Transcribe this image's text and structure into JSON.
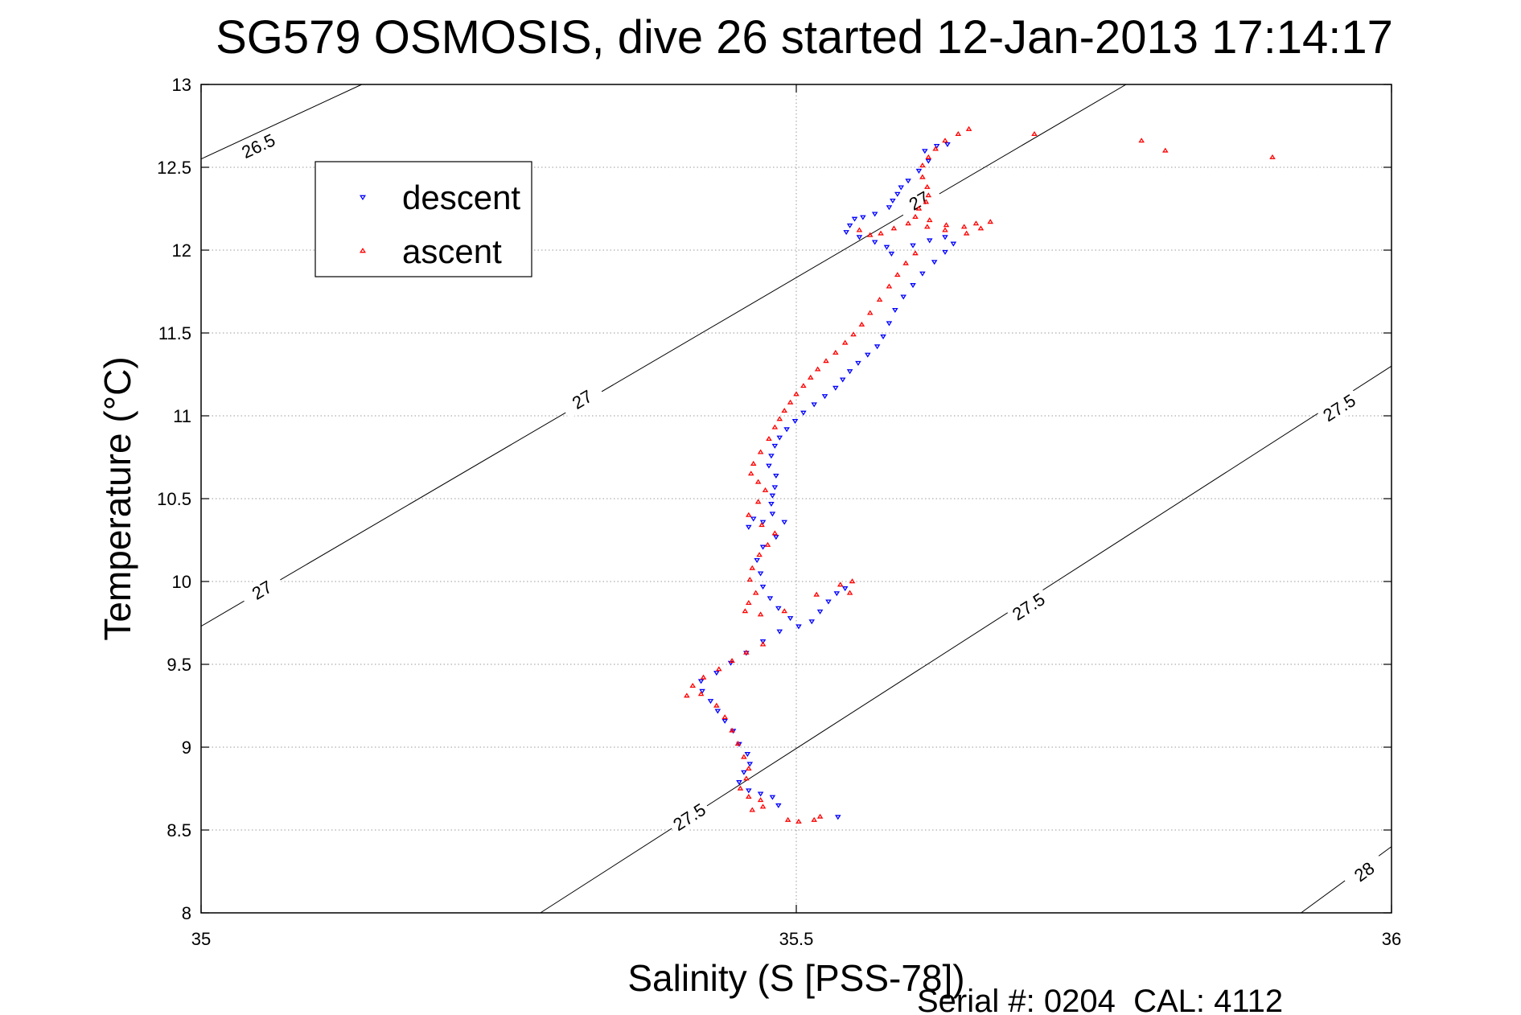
{
  "chart_data": {
    "type": "scatter",
    "title": "SG579 OSMOSIS, dive 26 started 12-Jan-2013 17:14:17",
    "xlabel": "Salinity (S [PSS-78])",
    "ylabel": "Temperature (°C)",
    "footer": "Serial #: 0204  CAL: 4112",
    "xlim": [
      35,
      36
    ],
    "ylim": [
      8,
      13
    ],
    "xticks": [
      35,
      35.5,
      36
    ],
    "xtick_labels": [
      "35",
      "35.5",
      "36"
    ],
    "yticks": [
      8,
      8.5,
      9,
      9.5,
      10,
      10.5,
      11,
      11.5,
      12,
      12.5,
      13
    ],
    "ytick_labels": [
      "8",
      "8.5",
      "9",
      "9.5",
      "10",
      "10.5",
      "11",
      "11.5",
      "12",
      "12.5",
      "13"
    ],
    "grid": true,
    "legend_position": "top-left",
    "colors": {
      "descent": "#0000ff",
      "ascent": "#ff0000",
      "axis": "#000000",
      "grid": "#9a9a9a"
    },
    "contours": [
      {
        "label": "26.5",
        "points": [
          [
            35.0,
            12.55
          ],
          [
            35.135,
            13.0
          ]
        ],
        "label_positions": [
          [
            35.048,
            12.63
          ]
        ]
      },
      {
        "label": "27",
        "points": [
          [
            35.0,
            9.73
          ],
          [
            35.777,
            13.0
          ]
        ],
        "label_positions": [
          [
            35.051,
            9.95
          ],
          [
            35.32,
            11.1
          ],
          [
            35.603,
            12.3
          ]
        ]
      },
      {
        "label": "27.5",
        "points": [
          [
            35.285,
            8.0
          ],
          [
            36.0,
            11.3
          ]
        ],
        "label_positions": [
          [
            35.41,
            8.58
          ],
          [
            35.695,
            9.85
          ],
          [
            35.956,
            11.05
          ]
        ]
      },
      {
        "label": "28",
        "points": [
          [
            35.924,
            8.0
          ],
          [
            36.0,
            8.4
          ]
        ],
        "label_positions": [
          [
            35.977,
            8.25
          ]
        ]
      }
    ],
    "series": [
      {
        "name": "descent",
        "marker": "triangle-down",
        "points": [
          [
            35.627,
            12.64
          ],
          [
            35.618,
            12.63
          ],
          [
            35.608,
            12.6
          ],
          [
            35.611,
            12.54
          ],
          [
            35.603,
            12.48
          ],
          [
            35.594,
            12.42
          ],
          [
            35.588,
            12.38
          ],
          [
            35.585,
            12.34
          ],
          [
            35.581,
            12.3
          ],
          [
            35.578,
            12.26
          ],
          [
            35.566,
            12.22
          ],
          [
            35.556,
            12.2
          ],
          [
            35.549,
            12.19
          ],
          [
            35.545,
            12.15
          ],
          [
            35.542,
            12.11
          ],
          [
            35.553,
            12.08
          ],
          [
            35.566,
            12.05
          ],
          [
            35.576,
            12.02
          ],
          [
            35.58,
            11.98
          ],
          [
            35.598,
            12.03
          ],
          [
            35.612,
            12.06
          ],
          [
            35.625,
            12.08
          ],
          [
            35.632,
            12.04
          ],
          [
            35.625,
            11.99
          ],
          [
            35.616,
            11.93
          ],
          [
            35.606,
            11.86
          ],
          [
            35.598,
            11.79
          ],
          [
            35.59,
            11.72
          ],
          [
            35.583,
            11.64
          ],
          [
            35.578,
            11.56
          ],
          [
            35.573,
            11.48
          ],
          [
            35.568,
            11.42
          ],
          [
            35.56,
            11.37
          ],
          [
            35.552,
            11.32
          ],
          [
            35.545,
            11.27
          ],
          [
            35.539,
            11.22
          ],
          [
            35.533,
            11.17
          ],
          [
            35.524,
            11.12
          ],
          [
            35.515,
            11.07
          ],
          [
            35.506,
            11.02
          ],
          [
            35.499,
            10.97
          ],
          [
            35.492,
            10.92
          ],
          [
            35.486,
            10.87
          ],
          [
            35.482,
            10.82
          ],
          [
            35.479,
            10.76
          ],
          [
            35.477,
            10.7
          ],
          [
            35.483,
            10.64
          ],
          [
            35.482,
            10.57
          ],
          [
            35.48,
            10.52
          ],
          [
            35.479,
            10.47
          ],
          [
            35.464,
            10.38
          ],
          [
            35.46,
            10.33
          ],
          [
            35.472,
            10.36
          ],
          [
            35.48,
            10.41
          ],
          [
            35.49,
            10.36
          ],
          [
            35.483,
            10.27
          ],
          [
            35.472,
            10.21
          ],
          [
            35.467,
            10.13
          ],
          [
            35.47,
            10.05
          ],
          [
            35.472,
            9.97
          ],
          [
            35.478,
            9.9
          ],
          [
            35.485,
            9.84
          ],
          [
            35.495,
            9.78
          ],
          [
            35.502,
            9.73
          ],
          [
            35.513,
            9.76
          ],
          [
            35.52,
            9.82
          ],
          [
            35.527,
            9.88
          ],
          [
            35.534,
            9.93
          ],
          [
            35.541,
            9.96
          ],
          [
            35.486,
            9.7
          ],
          [
            35.472,
            9.64
          ],
          [
            35.458,
            9.57
          ],
          [
            35.445,
            9.51
          ],
          [
            35.433,
            9.45
          ],
          [
            35.42,
            9.4
          ],
          [
            35.421,
            9.34
          ],
          [
            35.428,
            9.28
          ],
          [
            35.434,
            9.22
          ],
          [
            35.44,
            9.16
          ],
          [
            35.447,
            9.1
          ],
          [
            35.452,
            9.02
          ],
          [
            35.459,
            8.96
          ],
          [
            35.461,
            8.9
          ],
          [
            35.456,
            8.85
          ],
          [
            35.452,
            8.79
          ],
          [
            35.46,
            8.74
          ],
          [
            35.47,
            8.72
          ],
          [
            35.48,
            8.7
          ],
          [
            35.485,
            8.65
          ],
          [
            35.535,
            8.58
          ]
        ]
      },
      {
        "name": "ascent",
        "marker": "triangle-up",
        "points": [
          [
            35.7,
            12.7
          ],
          [
            35.79,
            12.66
          ],
          [
            35.81,
            12.6
          ],
          [
            35.9,
            12.56
          ],
          [
            35.645,
            12.73
          ],
          [
            35.636,
            12.7
          ],
          [
            35.625,
            12.66
          ],
          [
            35.617,
            12.61
          ],
          [
            35.611,
            12.56
          ],
          [
            35.606,
            12.51
          ],
          [
            35.606,
            12.44
          ],
          [
            35.61,
            12.38
          ],
          [
            35.611,
            12.33
          ],
          [
            35.609,
            12.29
          ],
          [
            35.603,
            12.25
          ],
          [
            35.6,
            12.2
          ],
          [
            35.612,
            12.18
          ],
          [
            35.626,
            12.15
          ],
          [
            35.641,
            12.14
          ],
          [
            35.651,
            12.16
          ],
          [
            35.663,
            12.17
          ],
          [
            35.655,
            12.13
          ],
          [
            35.643,
            12.1
          ],
          [
            35.625,
            12.12
          ],
          [
            35.61,
            12.14
          ],
          [
            35.594,
            12.16
          ],
          [
            35.582,
            12.13
          ],
          [
            35.571,
            12.1
          ],
          [
            35.562,
            12.09
          ],
          [
            35.553,
            12.12
          ],
          [
            35.6,
            11.98
          ],
          [
            35.592,
            11.92
          ],
          [
            35.585,
            11.85
          ],
          [
            35.578,
            11.78
          ],
          [
            35.57,
            11.7
          ],
          [
            35.562,
            11.62
          ],
          [
            35.555,
            11.55
          ],
          [
            35.548,
            11.49
          ],
          [
            35.541,
            11.44
          ],
          [
            35.533,
            11.38
          ],
          [
            35.525,
            11.33
          ],
          [
            35.518,
            11.28
          ],
          [
            35.512,
            11.23
          ],
          [
            35.506,
            11.18
          ],
          [
            35.5,
            11.13
          ],
          [
            35.495,
            11.08
          ],
          [
            35.49,
            11.03
          ],
          [
            35.486,
            10.98
          ],
          [
            35.482,
            10.93
          ],
          [
            35.477,
            10.86
          ],
          [
            35.47,
            10.78
          ],
          [
            35.464,
            10.71
          ],
          [
            35.462,
            10.65
          ],
          [
            35.468,
            10.6
          ],
          [
            35.474,
            10.55
          ],
          [
            35.468,
            10.48
          ],
          [
            35.46,
            10.4
          ],
          [
            35.471,
            10.34
          ],
          [
            35.482,
            10.29
          ],
          [
            35.476,
            10.22
          ],
          [
            35.469,
            10.16
          ],
          [
            35.463,
            10.08
          ],
          [
            35.461,
            10.01
          ],
          [
            35.466,
            9.93
          ],
          [
            35.46,
            9.87
          ],
          [
            35.457,
            9.82
          ],
          [
            35.47,
            9.8
          ],
          [
            35.49,
            9.82
          ],
          [
            35.517,
            9.92
          ],
          [
            35.537,
            9.98
          ],
          [
            35.547,
            10.0
          ],
          [
            35.545,
            9.93
          ],
          [
            35.472,
            9.62
          ],
          [
            35.458,
            9.57
          ],
          [
            35.446,
            9.52
          ],
          [
            35.435,
            9.47
          ],
          [
            35.422,
            9.42
          ],
          [
            35.413,
            9.37
          ],
          [
            35.408,
            9.31
          ],
          [
            35.42,
            9.32
          ],
          [
            35.433,
            9.25
          ],
          [
            35.44,
            9.18
          ],
          [
            35.446,
            9.1
          ],
          [
            35.451,
            9.02
          ],
          [
            35.456,
            8.94
          ],
          [
            35.46,
            8.87
          ],
          [
            35.458,
            8.81
          ],
          [
            35.453,
            8.75
          ],
          [
            35.46,
            8.7
          ],
          [
            35.47,
            8.68
          ],
          [
            35.472,
            8.64
          ],
          [
            35.463,
            8.62
          ],
          [
            35.52,
            8.58
          ],
          [
            35.515,
            8.56
          ],
          [
            35.493,
            8.56
          ],
          [
            35.502,
            8.55
          ]
        ]
      }
    ]
  }
}
